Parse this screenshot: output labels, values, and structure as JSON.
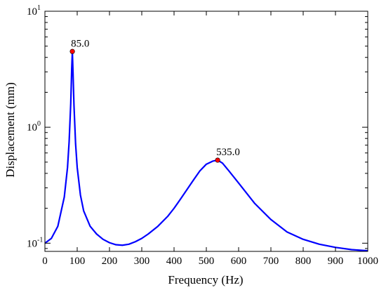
{
  "chart_data": {
    "type": "line",
    "title": "",
    "xlabel": "Frequency (Hz)",
    "ylabel": "Displacement (mm)",
    "xlim": [
      0,
      1000
    ],
    "ylim": [
      0.085,
      10
    ],
    "y_scale": "log",
    "grid": false,
    "x_ticks": [
      0,
      100,
      200,
      300,
      400,
      500,
      600,
      700,
      800,
      900,
      1000
    ],
    "y_ticks": [
      {
        "base": "10",
        "exp": "-1",
        "value": 0.1
      },
      {
        "base": "10",
        "exp": "0",
        "value": 1
      },
      {
        "base": "10",
        "exp": "1",
        "value": 10
      }
    ],
    "series": [
      {
        "color": "#0000ff",
        "x": [
          0,
          20,
          40,
          60,
          70,
          75,
          80,
          83,
          85,
          87,
          90,
          95,
          100,
          110,
          120,
          140,
          160,
          180,
          200,
          220,
          240,
          260,
          280,
          300,
          320,
          350,
          380,
          400,
          420,
          440,
          460,
          480,
          500,
          520,
          535,
          550,
          570,
          600,
          650,
          700,
          750,
          800,
          850,
          900,
          950,
          1000
        ],
        "y": [
          0.1,
          0.11,
          0.14,
          0.25,
          0.45,
          0.75,
          1.6,
          3.2,
          4.5,
          3.0,
          1.55,
          0.72,
          0.45,
          0.26,
          0.19,
          0.14,
          0.12,
          0.108,
          0.101,
          0.097,
          0.096,
          0.098,
          0.103,
          0.11,
          0.12,
          0.14,
          0.17,
          0.2,
          0.24,
          0.29,
          0.35,
          0.42,
          0.48,
          0.51,
          0.52,
          0.49,
          0.42,
          0.33,
          0.22,
          0.16,
          0.125,
          0.108,
          0.098,
          0.092,
          0.088,
          0.086
        ]
      }
    ],
    "annotations": [
      {
        "label": "85.0",
        "x": 85,
        "y": 4.5,
        "marker_color": "#ff0000"
      },
      {
        "label": "535.0",
        "x": 535,
        "y": 0.52,
        "marker_color": "#ff0000"
      }
    ]
  }
}
